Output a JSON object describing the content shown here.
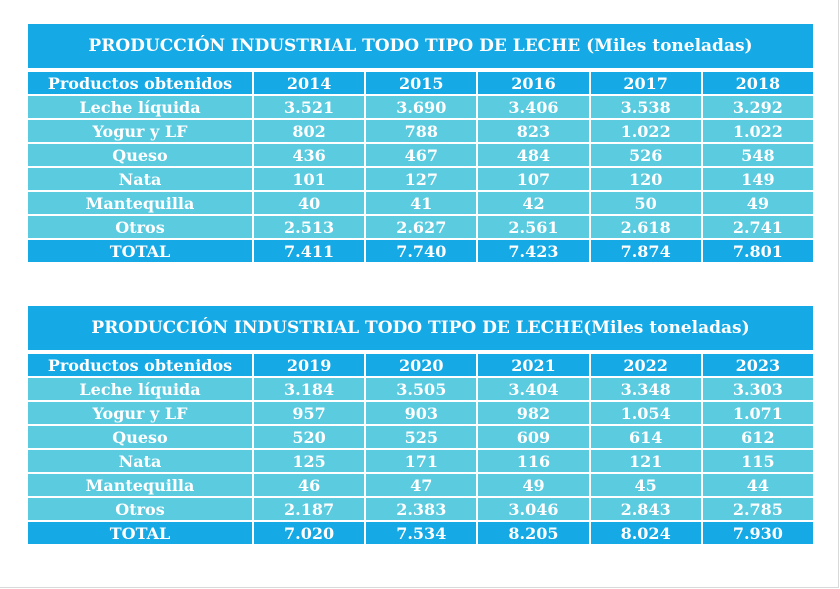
{
  "tables": [
    {
      "title": "PRODUCCIÓN INDUSTRIAL TODO TIPO DE LECHE (Miles toneladas)",
      "header": [
        "Productos obtenidos",
        "2014",
        "2015",
        "2016",
        "2017",
        "2018"
      ],
      "rows": [
        [
          "Leche líquida",
          "3.521",
          "3.690",
          "3.406",
          "3.538",
          "3.292"
        ],
        [
          "Yogur y LF",
          "802",
          "788",
          "823",
          "1.022",
          "1.022"
        ],
        [
          "Queso",
          "436",
          "467",
          "484",
          "526",
          "548"
        ],
        [
          "Nata",
          "101",
          "127",
          "107",
          "120",
          "149"
        ],
        [
          "Mantequilla",
          "40",
          "41",
          "42",
          "50",
          "49"
        ],
        [
          "Otros",
          "2.513",
          "2.627",
          "2.561",
          "2.618",
          "2.741"
        ]
      ],
      "total": [
        "TOTAL",
        "7.411",
        "7.740",
        "7.423",
        "7.874",
        "7.801"
      ]
    },
    {
      "title": "PRODUCCIÓN INDUSTRIAL TODO TIPO DE LECHE(Miles toneladas)",
      "header": [
        "Productos obtenidos",
        "2019",
        "2020",
        "2021",
        "2022",
        "2023"
      ],
      "rows": [
        [
          "Leche líquida",
          "3.184",
          "3.505",
          "3.404",
          "3.348",
          "3.303"
        ],
        [
          "Yogur y LF",
          "957",
          "903",
          "982",
          "1.054",
          "1.071"
        ],
        [
          "Queso",
          "520",
          "525",
          "609",
          "614",
          "612"
        ],
        [
          "Nata",
          "125",
          "171",
          "116",
          "121",
          "115"
        ],
        [
          "Mantequilla",
          "46",
          "47",
          "49",
          "45",
          "44"
        ],
        [
          "Otros",
          "2.187",
          "2.383",
          "3.046",
          "2.843",
          "2.785"
        ]
      ],
      "total": [
        "TOTAL",
        "7.020",
        "7.534",
        "8.205",
        "8.024",
        "7.930"
      ]
    }
  ],
  "colors": {
    "header": "#15a9e6",
    "body": "#5bcbe0",
    "text": "#ffffff"
  }
}
